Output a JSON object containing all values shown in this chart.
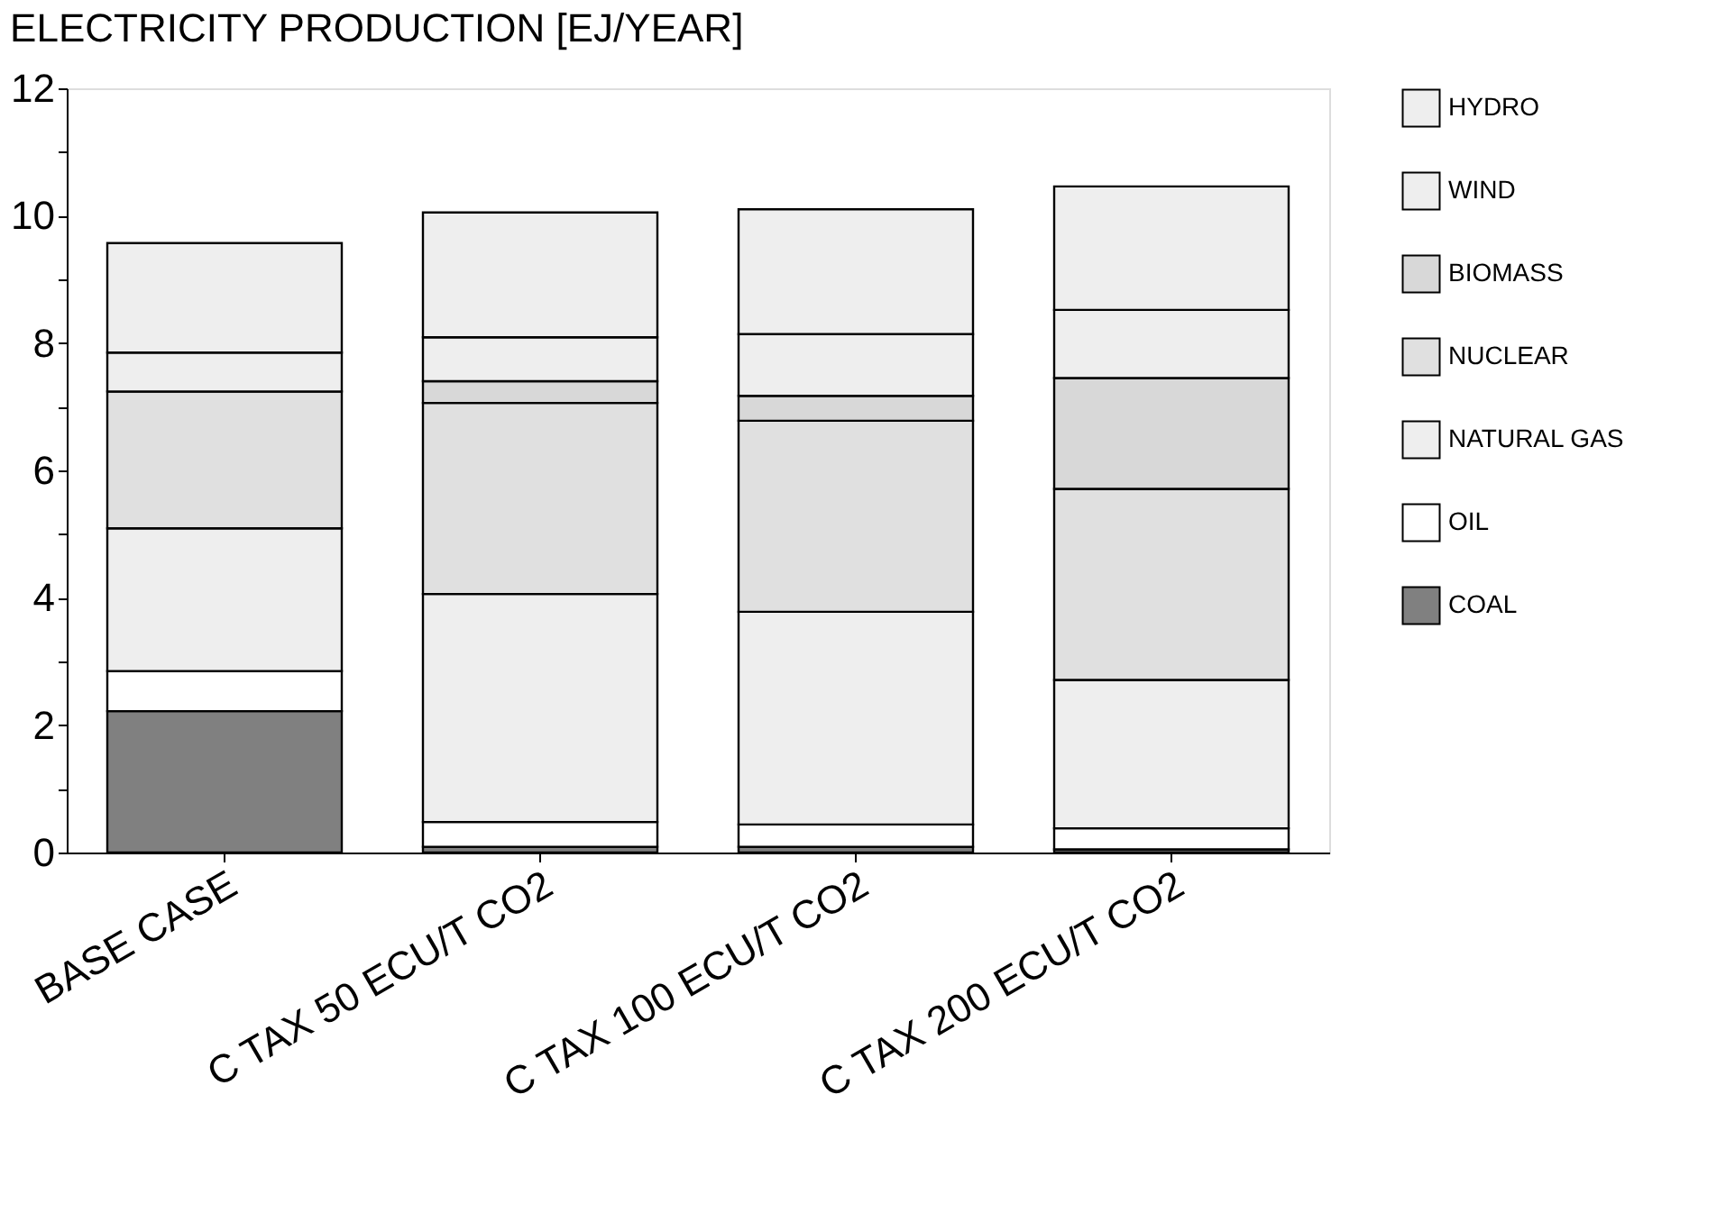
{
  "chart_data": {
    "type": "bar",
    "title": "ELECTRICITY PRODUCTION [EJ/YEAR]",
    "stacked": true,
    "legend": "right",
    "categories": [
      "BASE CASE",
      "C TAX 50 ECU/T CO2",
      "C TAX 100 ECU/T CO2",
      "C TAX 200 ECU/T CO2"
    ],
    "series": [
      {
        "name": "COAL",
        "color": "#808080",
        "values": [
          2.22,
          0.09,
          0.09,
          0.05
        ]
      },
      {
        "name": "OIL",
        "color": "#ffffff",
        "values": [
          0.63,
          0.39,
          0.35,
          0.33
        ]
      },
      {
        "name": "NATURAL GAS",
        "color": "#eeeeee",
        "values": [
          2.24,
          3.58,
          3.34,
          2.33
        ]
      },
      {
        "name": "NUCLEAR",
        "color": "#e0e0e0",
        "values": [
          2.15,
          3.0,
          3.0,
          3.0
        ]
      },
      {
        "name": "BIOMASS",
        "color": "#d8d8d8",
        "values": [
          0,
          0.34,
          0.39,
          1.74
        ]
      },
      {
        "name": "WIND",
        "color": "#eeeeee",
        "values": [
          0.61,
          0.69,
          0.97,
          1.07
        ]
      },
      {
        "name": "HYDRO",
        "color": "#eeeeee",
        "values": [
          1.72,
          1.96,
          1.96,
          1.94
        ]
      }
    ],
    "ylim": [
      0,
      12
    ],
    "yticks": [
      0,
      {
        "value": 1,
        "label": null
      },
      2,
      {
        "value": 3,
        "label": null
      },
      4,
      {
        "value": 5,
        "label": null
      },
      6,
      {
        "value": 7,
        "label": null
      },
      8,
      {
        "value": 9,
        "label": null
      },
      10,
      {
        "value": 11,
        "label": null
      },
      12
    ],
    "grid": false
  }
}
